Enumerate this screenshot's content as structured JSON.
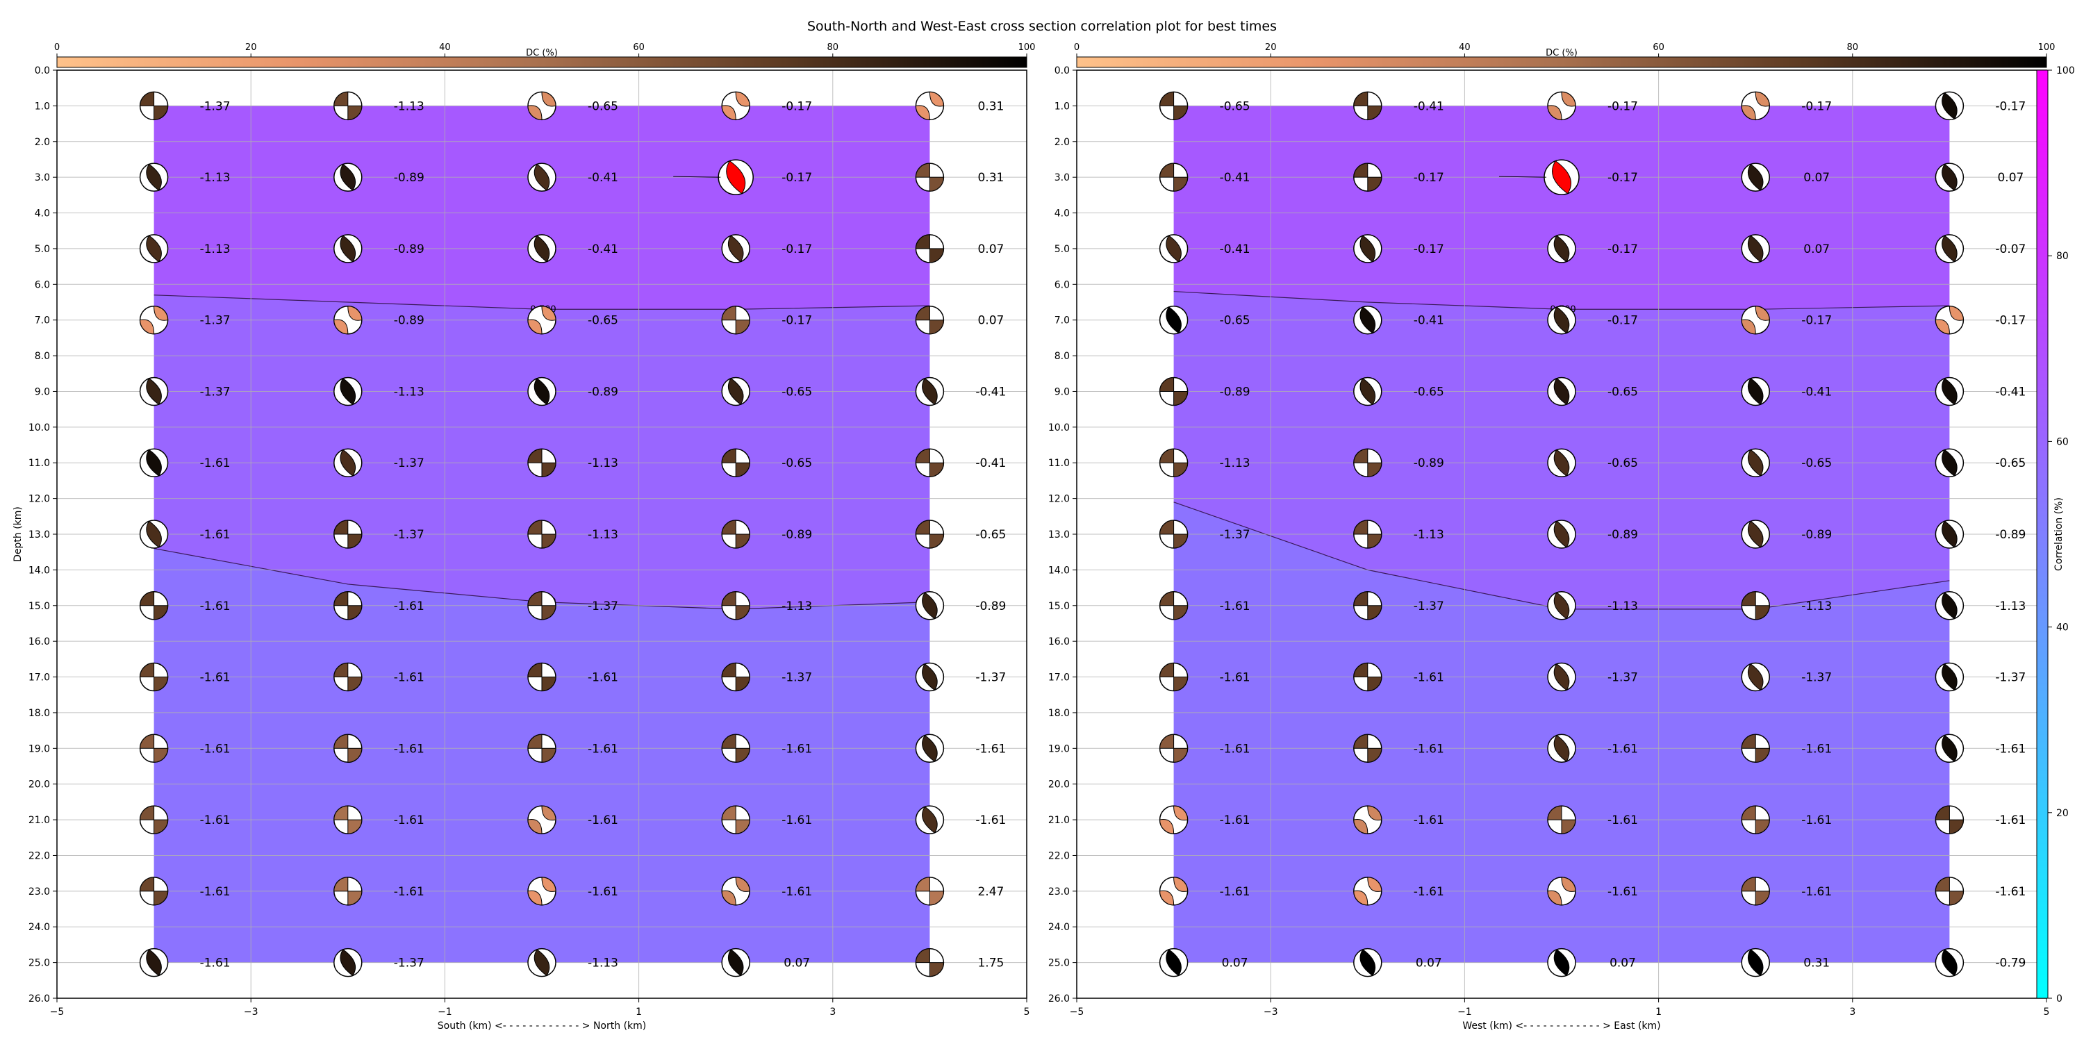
{
  "figure": {
    "title": "South-North and West-East cross section correlation plot for best times"
  },
  "chart_data": [
    {
      "type": "heatmap",
      "name": "south-north",
      "xlabel": "South (km) <- - - - - - - - - - - - > North (km)",
      "ylabel": "Depth (km)",
      "xlim": [
        -5,
        5
      ],
      "ylim": [
        26,
        0
      ],
      "x_ticks": [
        -5,
        -3,
        -1,
        1,
        3,
        5
      ],
      "y_ticks": [
        0,
        1,
        2,
        3,
        4,
        5,
        6,
        7,
        8,
        9,
        10,
        11,
        12,
        13,
        14,
        15,
        16,
        17,
        18,
        19,
        20,
        21,
        22,
        23,
        24,
        25,
        26
      ],
      "grid": true,
      "dc_colorbar": {
        "label": "DC (%)",
        "ticks": [
          0,
          20,
          40,
          60,
          80,
          100
        ]
      },
      "columns_x": [
        -4,
        -2,
        0,
        2,
        4
      ],
      "depths": [
        1,
        3,
        5,
        7,
        9,
        11,
        13,
        15,
        17,
        19,
        21,
        23,
        25
      ],
      "correlation_zones": [
        {
          "depth_top": 1,
          "contour": [
            6.3,
            6.5,
            6.7,
            6.7,
            6.6
          ],
          "correlation": 65
        },
        {
          "depth_top": "contour",
          "contour": [
            13.4,
            14.4,
            14.9,
            15.1,
            14.9
          ],
          "correlation": 60
        },
        {
          "depth_top": "contour",
          "depth_bottom": 25,
          "correlation": 55
        }
      ],
      "contour_labels": [
        {
          "text": "0.700",
          "x": 0,
          "depth": 6.7
        },
        {
          "text": "0.500",
          "x": 0,
          "depth": 14.9
        }
      ],
      "best_solution": {
        "x": 2,
        "depth": 3,
        "color": "#ff0000"
      },
      "values": [
        [
          -1.37,
          -1.13,
          -0.65,
          -0.17,
          0.31
        ],
        [
          -1.13,
          -0.89,
          -0.41,
          -0.17,
          0.31
        ],
        [
          -1.13,
          -0.89,
          -0.41,
          -0.17,
          0.07
        ],
        [
          -1.37,
          -0.89,
          -0.65,
          -0.17,
          0.07
        ],
        [
          -1.37,
          -1.13,
          -0.89,
          -0.65,
          -0.41
        ],
        [
          -1.61,
          -1.37,
          -1.13,
          -0.65,
          -0.41
        ],
        [
          -1.61,
          -1.37,
          -1.13,
          -0.89,
          -0.65
        ],
        [
          -1.61,
          -1.61,
          -1.37,
          -1.13,
          -0.89
        ],
        [
          -1.61,
          -1.61,
          -1.61,
          -1.37,
          -1.37
        ],
        [
          -1.61,
          -1.61,
          -1.61,
          -1.61,
          -1.61
        ],
        [
          -1.61,
          -1.61,
          -1.61,
          -1.61,
          -1.61
        ],
        [
          -1.61,
          -1.61,
          -1.61,
          -1.61,
          2.47
        ],
        [
          -1.61,
          -1.37,
          -1.13,
          0.07,
          1.75
        ]
      ],
      "dc": [
        [
          75,
          70,
          30,
          25,
          25
        ],
        [
          85,
          90,
          80,
          90,
          65
        ],
        [
          80,
          85,
          85,
          80,
          78
        ],
        [
          25,
          25,
          25,
          60,
          70
        ],
        [
          85,
          95,
          95,
          85,
          85
        ],
        [
          95,
          80,
          75,
          75,
          70
        ],
        [
          80,
          75,
          70,
          70,
          70
        ],
        [
          75,
          75,
          70,
          70,
          85
        ],
        [
          70,
          70,
          75,
          75,
          85
        ],
        [
          60,
          60,
          65,
          70,
          85
        ],
        [
          65,
          50,
          35,
          50,
          80
        ],
        [
          70,
          50,
          25,
          35,
          45
        ],
        [
          90,
          90,
          85,
          95,
          70
        ]
      ]
    },
    {
      "type": "heatmap",
      "name": "west-east",
      "xlabel": "West (km) <- - - - - - - - - - - - > East (km)",
      "ylabel": "",
      "xlim": [
        -5,
        5
      ],
      "ylim": [
        26,
        0
      ],
      "x_ticks": [
        -5,
        -3,
        -1,
        1,
        3,
        5
      ],
      "y_ticks": [
        0,
        1,
        2,
        3,
        4,
        5,
        6,
        7,
        8,
        9,
        10,
        11,
        12,
        13,
        14,
        15,
        16,
        17,
        18,
        19,
        20,
        21,
        22,
        23,
        24,
        25,
        26
      ],
      "grid": true,
      "dc_colorbar": {
        "label": "DC (%)",
        "ticks": [
          0,
          20,
          40,
          60,
          80,
          100
        ]
      },
      "columns_x": [
        -4,
        -2,
        0,
        2,
        4
      ],
      "depths": [
        1,
        3,
        5,
        7,
        9,
        11,
        13,
        15,
        17,
        19,
        21,
        23,
        25
      ],
      "correlation_zones": [
        {
          "depth_top": 1,
          "contour": [
            6.2,
            6.5,
            6.7,
            6.7,
            6.6
          ],
          "correlation": 65
        },
        {
          "depth_top": "contour",
          "contour": [
            12.1,
            14.0,
            15.1,
            15.1,
            14.3
          ],
          "correlation": 60
        },
        {
          "depth_top": "contour",
          "depth_bottom": 25,
          "correlation": 55
        }
      ],
      "contour_labels": [
        {
          "text": "0.700",
          "x": 0,
          "depth": 6.7
        }
      ],
      "best_solution": {
        "x": 0,
        "depth": 3,
        "color": "#ff0000"
      },
      "values": [
        [
          -0.65,
          -0.41,
          -0.17,
          -0.17,
          -0.17
        ],
        [
          -0.41,
          -0.17,
          -0.17,
          0.07,
          0.07
        ],
        [
          -0.41,
          -0.17,
          -0.17,
          0.07,
          -0.07
        ],
        [
          -0.65,
          -0.41,
          -0.17,
          -0.17,
          -0.17
        ],
        [
          -0.89,
          -0.65,
          -0.65,
          -0.41,
          -0.41
        ],
        [
          -1.13,
          -0.89,
          -0.65,
          -0.65,
          -0.65
        ],
        [
          -1.37,
          -1.13,
          -0.89,
          -0.89,
          -0.89
        ],
        [
          -1.61,
          -1.37,
          -1.13,
          -1.13,
          -1.13
        ],
        [
          -1.61,
          -1.61,
          -1.37,
          -1.37,
          -1.37
        ],
        [
          -1.61,
          -1.61,
          -1.61,
          -1.61,
          -1.61
        ],
        [
          -1.61,
          -1.61,
          -1.61,
          -1.61,
          -1.61
        ],
        [
          -1.61,
          -1.61,
          -1.61,
          -1.61,
          -1.61
        ],
        [
          0.07,
          0.07,
          0.07,
          0.31,
          -0.79
        ]
      ],
      "dc": [
        [
          75,
          75,
          30,
          30,
          95
        ],
        [
          70,
          75,
          80,
          90,
          90
        ],
        [
          80,
          85,
          85,
          85,
          85
        ],
        [
          100,
          95,
          85,
          30,
          25
        ],
        [
          75,
          85,
          90,
          95,
          95
        ],
        [
          70,
          70,
          80,
          80,
          95
        ],
        [
          70,
          70,
          80,
          80,
          90
        ],
        [
          70,
          75,
          80,
          75,
          95
        ],
        [
          70,
          75,
          80,
          80,
          95
        ],
        [
          60,
          70,
          80,
          70,
          95
        ],
        [
          25,
          35,
          60,
          60,
          75
        ],
        [
          25,
          25,
          30,
          60,
          65
        ],
        [
          100,
          100,
          100,
          100,
          100
        ]
      ]
    }
  ],
  "correlation_colorbar": {
    "label": "Correlation (%)",
    "ticks": [
      0,
      20,
      40,
      60,
      80,
      100
    ],
    "colors": [
      "#00ffff",
      "#ff00ff"
    ]
  },
  "dc_colors": [
    "#ffc28a",
    "#e8946a",
    "#a8704e",
    "#5c3a22",
    "#000000"
  ]
}
